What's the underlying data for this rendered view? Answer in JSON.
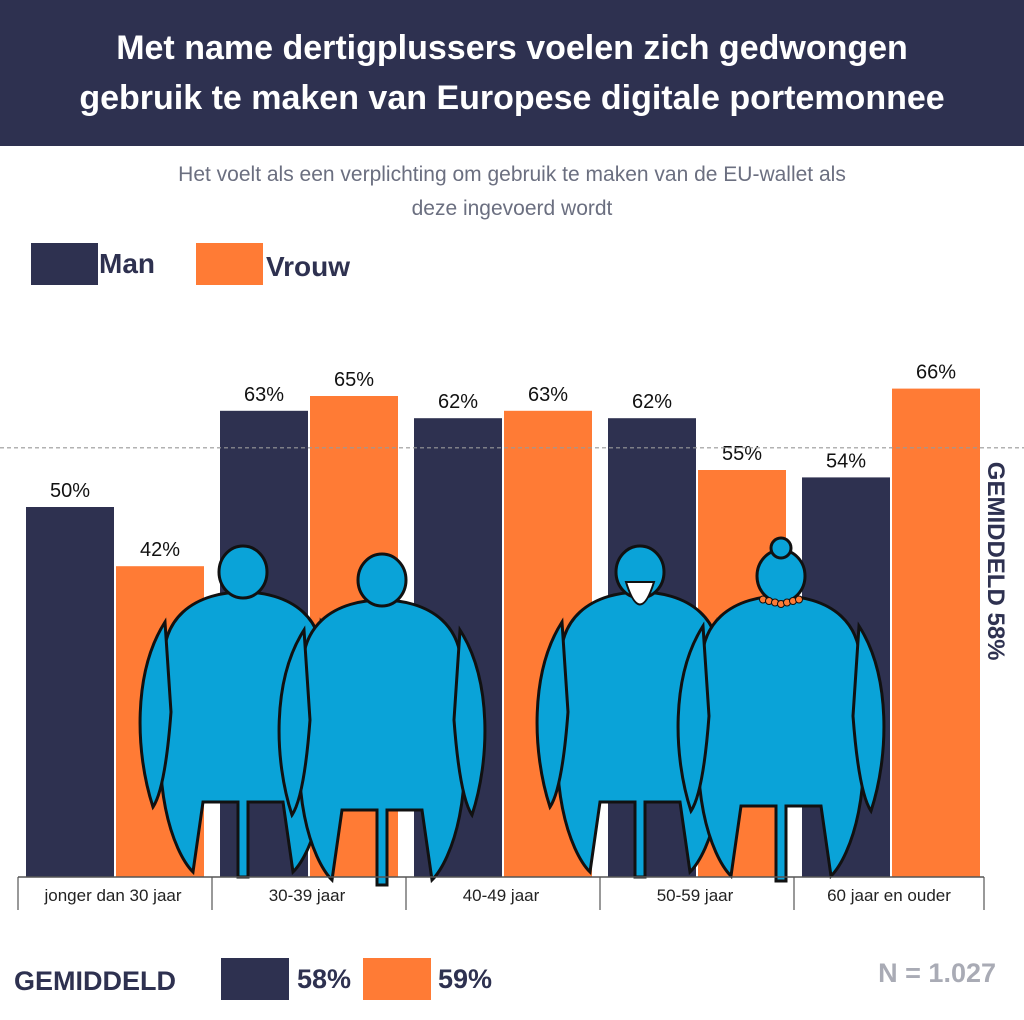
{
  "header": {
    "title_line1": "Met name dertigplussers voelen zich gedwongen",
    "title_line2": "gebruik te maken van Europese digitale portemonnee"
  },
  "subtitle": {
    "line1": "Het voelt als een verplichting om gebruik te maken van de EU-wallet als",
    "line2": "deze ingevoerd wordt"
  },
  "legend": {
    "man": "Man",
    "vrouw": "Vrouw"
  },
  "colors": {
    "man": "#2e3150",
    "vrouw": "#ff7b35",
    "figure": "#0aa3d8",
    "header_bg": "#2e3150"
  },
  "chart_data": {
    "type": "bar",
    "categories": [
      "jonger dan 30 jaar",
      "30-39 jaar",
      "40-49 jaar",
      "50-59 jaar",
      "60 jaar en ouder"
    ],
    "series": [
      {
        "name": "Man",
        "values": [
          50,
          63,
          62,
          62,
          54
        ],
        "labels": [
          "50%",
          "63%",
          "62%",
          "62%",
          "54%"
        ]
      },
      {
        "name": "Vrouw",
        "values": [
          42,
          65,
          63,
          55,
          66
        ],
        "labels": [
          "42%",
          "65%",
          "63%",
          "55%",
          "66%"
        ]
      }
    ],
    "reference_line": {
      "value": 58,
      "label": "GEMIDDELD 58%"
    },
    "ylim": [
      0,
      100
    ],
    "grid": false,
    "legend_position": "top-left"
  },
  "footer": {
    "average_label": "GEMIDDELD",
    "man_avg": "58%",
    "vrouw_avg": "59%",
    "n": "N = 1.027"
  }
}
